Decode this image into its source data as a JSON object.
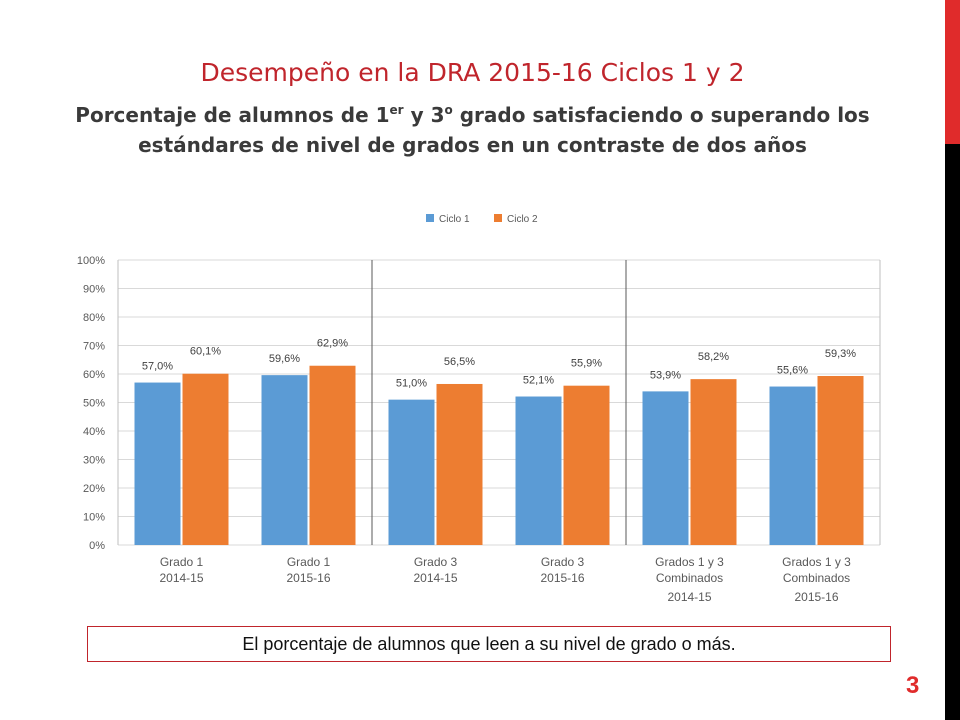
{
  "slide": {
    "title": "Desempeño en la DRA 2015-16 Ciclos 1 y 2",
    "subtitle_parts": [
      "Porcentaje de alumnos de 1",
      "er",
      " y 3",
      "o",
      " grado satisfaciendo o superando los estándares de nivel de grados en un contraste de dos años"
    ],
    "callout": "El porcentaje de alumnos que leen a su nivel de grado o más.",
    "page_number": "3",
    "accent_color": "#e02b2b"
  },
  "chart_data": {
    "type": "bar",
    "title": "",
    "xlabel": "",
    "ylabel": "",
    "ylim": [
      0,
      100
    ],
    "y_ticks": [
      "0%",
      "10%",
      "20%",
      "30%",
      "40%",
      "50%",
      "60%",
      "70%",
      "80%",
      "90%",
      "100%"
    ],
    "grid": true,
    "legend_position": "top",
    "categories": [
      {
        "lines": [
          "Grado 1",
          "2014-15"
        ]
      },
      {
        "lines": [
          "Grado 1",
          "2015-16"
        ]
      },
      {
        "lines": [
          "Grado 3",
          "2014-15"
        ]
      },
      {
        "lines": [
          "Grado 3",
          "2015-16"
        ]
      },
      {
        "lines": [
          "Grados 1 y 3",
          "Combinados",
          "2014-15"
        ]
      },
      {
        "lines": [
          "Grados 1 y 3",
          "Combinados",
          "2015-16"
        ]
      }
    ],
    "series": [
      {
        "name": "Ciclo 1",
        "color": "#5b9bd5",
        "values": [
          57.0,
          59.6,
          51.0,
          52.1,
          53.9,
          55.6
        ],
        "labels": [
          "57,0%",
          "59,6%",
          "51,0%",
          "52,1%",
          "53,9%",
          "55,6%"
        ]
      },
      {
        "name": "Ciclo 2",
        "color": "#ed7d31",
        "values": [
          60.1,
          62.9,
          56.5,
          55.9,
          58.2,
          59.3
        ],
        "labels": [
          "60,1%",
          "62,9%",
          "56,5%",
          "55,9%",
          "58,2%",
          "59,3%"
        ]
      }
    ]
  }
}
